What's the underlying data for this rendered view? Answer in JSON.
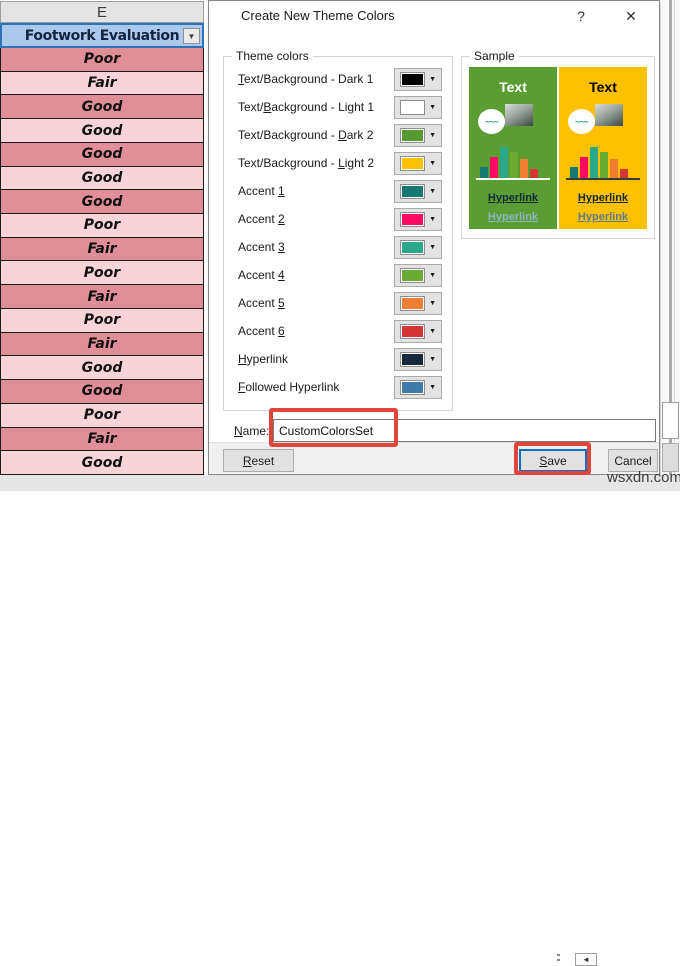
{
  "watermark": {
    "text": "wsxdn.com"
  },
  "spreadsheet": {
    "column_letter": "E",
    "header_cell": "Footwork Evaluation",
    "rows": [
      "Poor",
      "Fair",
      "Good",
      "Good",
      "Good",
      "Good",
      "Good",
      "Poor",
      "Fair",
      "Poor",
      "Fair",
      "Poor",
      "Fair",
      "Good",
      "Good",
      "Poor",
      "Fair",
      "Good"
    ],
    "colors": {
      "row_dark": "#e08e97",
      "row_light": "#f7d4d8",
      "header_bg": "#abc9ec",
      "selection_border": "#2e74b5"
    }
  },
  "dialog": {
    "title": "Create New Theme Colors",
    "help_button": "?",
    "close_button": "✕",
    "theme_colors_group": {
      "label": "Theme colors",
      "items": [
        {
          "text": "Text/Background - Dark 1",
          "u": 0,
          "color": "#000000"
        },
        {
          "text": "Text/Background - Light 1",
          "u": 5,
          "color": "#ffffff"
        },
        {
          "text": "Text/Background - Dark 2",
          "u": 18,
          "color": "#579b30"
        },
        {
          "text": "Text/Background - Light 2",
          "u": 18,
          "color": "#fec002"
        },
        {
          "text": "Accent 1",
          "u": 7,
          "color": "#167872"
        },
        {
          "text": "Accent 2",
          "u": 7,
          "color": "#fb0b64"
        },
        {
          "text": "Accent 3",
          "u": 7,
          "color": "#2ba889"
        },
        {
          "text": "Accent 4",
          "u": 7,
          "color": "#6baa33"
        },
        {
          "text": "Accent 5",
          "u": 7,
          "color": "#f07e33"
        },
        {
          "text": "Accent 6",
          "u": 7,
          "color": "#d43535"
        },
        {
          "text": "Hyperlink",
          "u": 0,
          "color": "#16293c"
        },
        {
          "text": "Followed Hyperlink",
          "u": 0,
          "color": "#3f7aa9"
        }
      ]
    },
    "sample_group": {
      "label": "Sample",
      "bar_values": [
        11,
        21,
        31,
        26,
        19,
        9
      ],
      "bar_colors": [
        "#167872",
        "#fb0b64",
        "#2ba889",
        "#6baa33",
        "#f07e33",
        "#d43535"
      ],
      "squiggle": "~~~",
      "cards": [
        {
          "bg": "#5a9e33",
          "text": "Text",
          "text_color": "#ffffff",
          "baseline": "#ffffff",
          "link1": "Hyperlink",
          "link1_color": "#16293c",
          "link2": "Hyperlink",
          "link2_color": "#8fb3c6"
        },
        {
          "bg": "#fec101",
          "text": "Text",
          "text_color": "#000000",
          "baseline": "#3a3a3a",
          "link1": "Hyperlink",
          "link1_color": "#16293c",
          "link2": "Hyperlink",
          "link2_color": "#5d7a8b"
        }
      ]
    },
    "name_field": {
      "label": {
        "text": "Name:",
        "u": 0
      },
      "value": "CustomColorsSet"
    },
    "buttons": {
      "reset": {
        "text": "Reset",
        "u": 0
      },
      "save": {
        "text": "Save",
        "u": 0
      },
      "cancel": {
        "text": "Cancel",
        "u": -1
      }
    },
    "annotation_color": "#e0453a"
  },
  "statusbar": {
    "left_arrow": "◄"
  }
}
